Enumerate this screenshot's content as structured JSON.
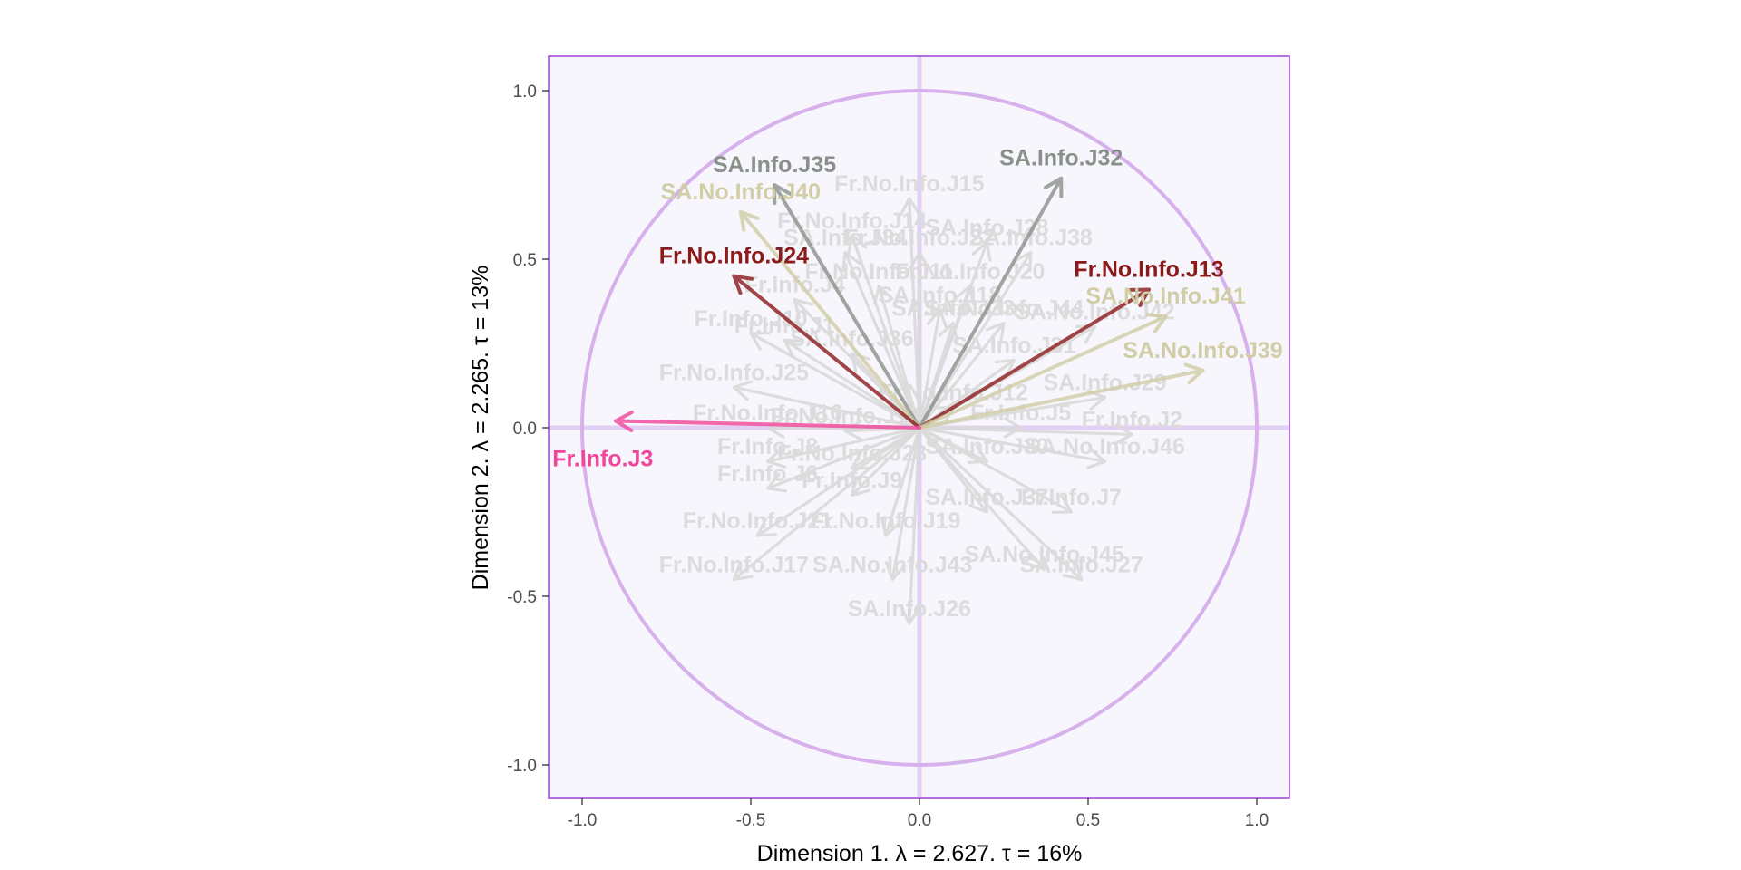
{
  "chart_data": {
    "type": "scatter",
    "subtype": "correlation-circle",
    "title": "",
    "xlabel": "Dimension 1.   λ = 2.627.  τ = 16%",
    "ylabel": "Dimension 2.   λ = 2.265.  τ = 13%",
    "xlim": [
      -1.1,
      1.1
    ],
    "ylim": [
      -1.1,
      1.1
    ],
    "x_ticks": [
      -1.0,
      -0.5,
      0.0,
      0.5,
      1.0
    ],
    "x_tick_labels": [
      "-1.0",
      "-0.5",
      "0.0",
      "0.5",
      "1.0"
    ],
    "y_ticks": [
      -1.0,
      -0.5,
      0.0,
      0.5,
      1.0
    ],
    "y_tick_labels": [
      "-1.0",
      "-0.5",
      "0.0",
      "0.5",
      "1.0"
    ],
    "unit_circle": true,
    "grid": false,
    "colors": {
      "panel_bg": "#f8f6fd",
      "panel_border": "#a04fd9",
      "circle": "#d7b1ec",
      "zero_lines": "#e2cff4",
      "background_arrows": "#dadada",
      "background_labels": "#dcdcdc",
      "SA.Info": "#8a918a",
      "SA.No.Info": "#d1cda6",
      "Fr.No.Info": "#8b1a1a",
      "Fr.Info": "#f0459a"
    },
    "highlighted": [
      {
        "name": "SA.Info.J35",
        "x": -0.43,
        "y": 0.72,
        "group": "SA.Info"
      },
      {
        "name": "SA.Info.J32",
        "x": 0.42,
        "y": 0.74,
        "group": "SA.Info"
      },
      {
        "name": "SA.No.Info.J40",
        "x": -0.53,
        "y": 0.64,
        "group": "SA.No.Info"
      },
      {
        "name": "Fr.No.Info.J24",
        "x": -0.55,
        "y": 0.45,
        "group": "Fr.No.Info"
      },
      {
        "name": "Fr.No.Info.J13",
        "x": 0.68,
        "y": 0.41,
        "group": "Fr.No.Info"
      },
      {
        "name": "SA.No.Info.J41",
        "x": 0.73,
        "y": 0.33,
        "group": "SA.No.Info"
      },
      {
        "name": "SA.No.Info.J39",
        "x": 0.84,
        "y": 0.17,
        "group": "SA.No.Info"
      },
      {
        "name": "Fr.Info.J3",
        "x": -0.9,
        "y": 0.02,
        "group": "Fr.Info"
      }
    ],
    "background": [
      {
        "name": "Fr.No.Info.J15",
        "x": -0.03,
        "y": 0.68
      },
      {
        "name": "Fr.No.Info.J14",
        "x": -0.2,
        "y": 0.57
      },
      {
        "name": "SA.Info.J28",
        "x": 0.2,
        "y": 0.55
      },
      {
        "name": "SA.Info.J38",
        "x": 0.33,
        "y": 0.52
      },
      {
        "name": "SA.Info.J34",
        "x": -0.22,
        "y": 0.52
      },
      {
        "name": "Fr.No.Info.J22",
        "x": 0.0,
        "y": 0.52
      },
      {
        "name": "Fr.No.Info.J20",
        "x": 0.15,
        "y": 0.42
      },
      {
        "name": "Fr.Info.J4",
        "x": -0.37,
        "y": 0.38
      },
      {
        "name": "Fr.No.Info.J11",
        "x": -0.12,
        "y": 0.42
      },
      {
        "name": "SA.Info.J18",
        "x": 0.06,
        "y": 0.35
      },
      {
        "name": "SA.Info.J33",
        "x": 0.1,
        "y": 0.31
      },
      {
        "name": "SA.No.Info.J44",
        "x": 0.25,
        "y": 0.31
      },
      {
        "name": "SA.No.Info.J42",
        "x": 0.52,
        "y": 0.3
      },
      {
        "name": "Fr.Info.J10",
        "x": -0.5,
        "y": 0.28
      },
      {
        "name": "Fr.Info.J1",
        "x": -0.4,
        "y": 0.26
      },
      {
        "name": "SA.Info.J36",
        "x": -0.2,
        "y": 0.22
      },
      {
        "name": "SA.Info.J31",
        "x": 0.28,
        "y": 0.2
      },
      {
        "name": "Fr.No.Info.J25",
        "x": -0.55,
        "y": 0.12
      },
      {
        "name": "SA.Info.J29",
        "x": 0.55,
        "y": 0.09
      },
      {
        "name": "Fr.No.Info.J12",
        "x": 0.1,
        "y": 0.06
      },
      {
        "name": "Fr.No.Info.J16",
        "x": -0.45,
        "y": 0.0
      },
      {
        "name": "Fr.No.Info.J18",
        "x": -0.22,
        "y": -0.01
      },
      {
        "name": "Fr.Info.J5",
        "x": 0.3,
        "y": 0.0
      },
      {
        "name": "Fr.Info.J2",
        "x": 0.63,
        "y": -0.02
      },
      {
        "name": "Fr.Info.J8",
        "x": -0.45,
        "y": -0.1
      },
      {
        "name": "Fr.No.Info.J23",
        "x": -0.2,
        "y": -0.12
      },
      {
        "name": "SA.Info.J30",
        "x": 0.2,
        "y": -0.1
      },
      {
        "name": "SA.No.Info.J46",
        "x": 0.55,
        "y": -0.1
      },
      {
        "name": "Fr.Info.J6",
        "x": -0.45,
        "y": -0.18
      },
      {
        "name": "Fr.Info.J9",
        "x": -0.2,
        "y": -0.2
      },
      {
        "name": "SA.Info.J37",
        "x": 0.2,
        "y": -0.25
      },
      {
        "name": "Fr.Info.J7",
        "x": 0.45,
        "y": -0.25
      },
      {
        "name": "Fr.No.Info.J21",
        "x": -0.48,
        "y": -0.32
      },
      {
        "name": "Fr.No.Info.J19",
        "x": -0.1,
        "y": -0.32
      },
      {
        "name": "SA.No.Info.J45",
        "x": 0.37,
        "y": -0.42
      },
      {
        "name": "Fr.No.Info.J17",
        "x": -0.55,
        "y": -0.45
      },
      {
        "name": "SA.No.Info.J43",
        "x": -0.08,
        "y": -0.45
      },
      {
        "name": "SA.Info.J27",
        "x": 0.48,
        "y": -0.45
      },
      {
        "name": "SA.Info.J26",
        "x": -0.03,
        "y": -0.58
      }
    ]
  }
}
